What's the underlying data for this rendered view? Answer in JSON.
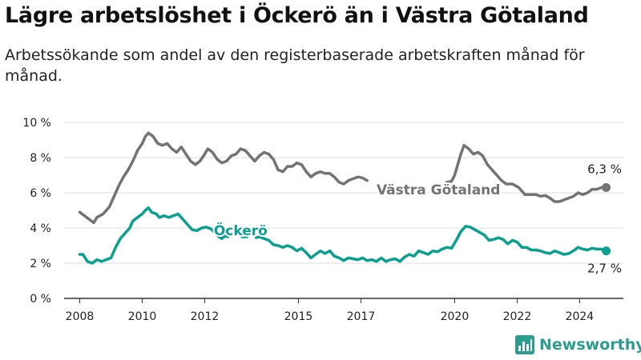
{
  "header": {
    "title": "Lägre arbetslöshet i Öckerö än i Västra Götaland",
    "subtitle": "Arbetssökande som andel av den registerbaserade arbetskraften månad för månad."
  },
  "brand": {
    "name": "Newsworthy",
    "icon": "bar-chart-logo-icon"
  },
  "colors": {
    "vg": "#737373",
    "ockero": "#0aa090",
    "grid": "#dddddd",
    "axis": "#333333",
    "text": "#222222"
  },
  "chart_data": {
    "type": "line",
    "ylim": [
      0,
      10
    ],
    "xlim": [
      2007.5,
      2025.4
    ],
    "ytick_values": [
      0,
      2,
      4,
      6,
      8,
      10
    ],
    "ytick_labels": [
      "0 %",
      "2 %",
      "4 %",
      "6 %",
      "8 %",
      "10 %"
    ],
    "xticks": [
      2008,
      2010,
      2012,
      2015,
      2017,
      2020,
      2022,
      2024
    ],
    "grid": true,
    "series": [
      {
        "name": "Västra Götaland",
        "key": "vg",
        "end_label": "6,3 %",
        "segments": [
          [
            [
              2008.0,
              4.9
            ],
            [
              2008.15,
              4.7
            ],
            [
              2008.3,
              4.5
            ],
            [
              2008.45,
              4.3
            ],
            [
              2008.55,
              4.6
            ],
            [
              2008.75,
              4.8
            ],
            [
              2008.95,
              5.2
            ],
            [
              2009.1,
              5.8
            ],
            [
              2009.25,
              6.4
            ],
            [
              2009.4,
              6.9
            ],
            [
              2009.55,
              7.3
            ],
            [
              2009.7,
              7.8
            ],
            [
              2009.85,
              8.4
            ],
            [
              2010.0,
              8.8
            ],
            [
              2010.1,
              9.2
            ],
            [
              2010.2,
              9.4
            ],
            [
              2010.35,
              9.2
            ],
            [
              2010.5,
              8.8
            ],
            [
              2010.65,
              8.7
            ],
            [
              2010.8,
              8.8
            ],
            [
              2010.95,
              8.5
            ],
            [
              2011.1,
              8.3
            ],
            [
              2011.25,
              8.6
            ],
            [
              2011.4,
              8.2
            ],
            [
              2011.55,
              7.8
            ],
            [
              2011.7,
              7.6
            ],
            [
              2011.85,
              7.8
            ],
            [
              2012.0,
              8.2
            ],
            [
              2012.1,
              8.5
            ],
            [
              2012.25,
              8.3
            ],
            [
              2012.4,
              7.9
            ],
            [
              2012.55,
              7.7
            ],
            [
              2012.7,
              7.8
            ],
            [
              2012.85,
              8.1
            ],
            [
              2013.0,
              8.2
            ],
            [
              2013.15,
              8.5
            ],
            [
              2013.3,
              8.4
            ],
            [
              2013.45,
              8.1
            ],
            [
              2013.6,
              7.8
            ],
            [
              2013.75,
              8.1
            ],
            [
              2013.9,
              8.3
            ],
            [
              2014.05,
              8.2
            ],
            [
              2014.2,
              7.9
            ],
            [
              2014.35,
              7.3
            ],
            [
              2014.5,
              7.2
            ],
            [
              2014.65,
              7.5
            ],
            [
              2014.8,
              7.5
            ],
            [
              2014.95,
              7.7
            ],
            [
              2015.1,
              7.6
            ],
            [
              2015.25,
              7.2
            ],
            [
              2015.4,
              6.9
            ],
            [
              2015.55,
              7.1
            ],
            [
              2015.7,
              7.2
            ],
            [
              2015.85,
              7.1
            ],
            [
              2016.0,
              7.1
            ],
            [
              2016.15,
              6.9
            ],
            [
              2016.3,
              6.6
            ],
            [
              2016.45,
              6.5
            ],
            [
              2016.6,
              6.7
            ],
            [
              2016.75,
              6.8
            ],
            [
              2016.9,
              6.9
            ],
            [
              2017.05,
              6.85
            ],
            [
              2017.2,
              6.7
            ]
          ],
          [
            [
              2019.75,
              6.6
            ],
            [
              2019.9,
              6.65
            ],
            [
              2020.0,
              7.0
            ],
            [
              2020.1,
              7.6
            ],
            [
              2020.2,
              8.2
            ],
            [
              2020.3,
              8.7
            ],
            [
              2020.45,
              8.5
            ],
            [
              2020.6,
              8.2
            ],
            [
              2020.75,
              8.3
            ],
            [
              2020.9,
              8.1
            ],
            [
              2021.05,
              7.6
            ],
            [
              2021.2,
              7.3
            ],
            [
              2021.35,
              7.0
            ],
            [
              2021.5,
              6.7
            ],
            [
              2021.65,
              6.5
            ],
            [
              2021.85,
              6.5
            ],
            [
              2022.05,
              6.3
            ],
            [
              2022.25,
              5.9
            ],
            [
              2022.45,
              5.9
            ],
            [
              2022.6,
              5.9
            ],
            [
              2022.75,
              5.8
            ],
            [
              2022.9,
              5.85
            ],
            [
              2023.05,
              5.7
            ],
            [
              2023.2,
              5.5
            ],
            [
              2023.35,
              5.5
            ],
            [
              2023.5,
              5.6
            ],
            [
              2023.65,
              5.7
            ],
            [
              2023.8,
              5.8
            ],
            [
              2023.95,
              6.0
            ],
            [
              2024.1,
              5.9
            ],
            [
              2024.25,
              6.0
            ],
            [
              2024.4,
              6.2
            ],
            [
              2024.55,
              6.2
            ],
            [
              2024.7,
              6.3
            ],
            [
              2024.85,
              6.3
            ]
          ]
        ]
      },
      {
        "name": "Öckerö",
        "key": "ockero",
        "end_label": "2,7 %",
        "segments": [
          [
            [
              2008.0,
              2.5
            ],
            [
              2008.1,
              2.5
            ],
            [
              2008.25,
              2.1
            ],
            [
              2008.4,
              2.0
            ],
            [
              2008.55,
              2.2
            ],
            [
              2008.7,
              2.1
            ],
            [
              2008.85,
              2.2
            ],
            [
              2009.0,
              2.3
            ],
            [
              2009.15,
              2.9
            ],
            [
              2009.3,
              3.4
            ],
            [
              2009.45,
              3.7
            ],
            [
              2009.6,
              4.0
            ],
            [
              2009.7,
              4.4
            ],
            [
              2009.85,
              4.6
            ],
            [
              2010.0,
              4.8
            ],
            [
              2010.1,
              5.0
            ],
            [
              2010.2,
              5.15
            ],
            [
              2010.3,
              4.9
            ],
            [
              2010.45,
              4.8
            ],
            [
              2010.55,
              4.6
            ],
            [
              2010.7,
              4.7
            ],
            [
              2010.85,
              4.6
            ],
            [
              2011.0,
              4.7
            ],
            [
              2011.15,
              4.8
            ],
            [
              2011.3,
              4.5
            ],
            [
              2011.45,
              4.2
            ],
            [
              2011.6,
              3.9
            ],
            [
              2011.75,
              3.85
            ],
            [
              2011.9,
              4.0
            ],
            [
              2012.05,
              4.05
            ],
            [
              2012.2,
              3.95
            ],
            [
              2012.35,
              3.7
            ],
            [
              2012.45,
              3.5
            ],
            [
              2012.55,
              3.4
            ],
            [
              2012.65,
              3.55
            ],
            [
              2012.75,
              3.5
            ]
          ],
          [
            [
              2013.2,
              3.5
            ],
            [
              2013.35,
              3.5
            ]
          ],
          [
            [
              2013.65,
              3.45
            ],
            [
              2013.75,
              3.5
            ],
            [
              2013.9,
              3.4
            ],
            [
              2014.05,
              3.3
            ],
            [
              2014.2,
              3.05
            ],
            [
              2014.35,
              3.0
            ],
            [
              2014.5,
              2.9
            ],
            [
              2014.65,
              3.0
            ],
            [
              2014.8,
              2.9
            ],
            [
              2014.95,
              2.7
            ],
            [
              2015.1,
              2.85
            ],
            [
              2015.25,
              2.6
            ],
            [
              2015.4,
              2.3
            ],
            [
              2015.55,
              2.5
            ],
            [
              2015.7,
              2.7
            ],
            [
              2015.85,
              2.55
            ],
            [
              2016.0,
              2.7
            ],
            [
              2016.15,
              2.4
            ],
            [
              2016.3,
              2.3
            ],
            [
              2016.45,
              2.15
            ],
            [
              2016.6,
              2.3
            ],
            [
              2016.75,
              2.25
            ],
            [
              2016.9,
              2.2
            ],
            [
              2017.05,
              2.3
            ],
            [
              2017.2,
              2.15
            ],
            [
              2017.35,
              2.2
            ],
            [
              2017.5,
              2.1
            ],
            [
              2017.65,
              2.3
            ],
            [
              2017.8,
              2.1
            ],
            [
              2017.95,
              2.2
            ],
            [
              2018.1,
              2.25
            ],
            [
              2018.25,
              2.1
            ],
            [
              2018.4,
              2.35
            ],
            [
              2018.55,
              2.5
            ],
            [
              2018.7,
              2.4
            ],
            [
              2018.85,
              2.7
            ],
            [
              2019.0,
              2.6
            ],
            [
              2019.15,
              2.5
            ],
            [
              2019.3,
              2.7
            ],
            [
              2019.45,
              2.65
            ],
            [
              2019.6,
              2.8
            ],
            [
              2019.75,
              2.9
            ],
            [
              2019.9,
              2.85
            ],
            [
              2020.05,
              3.3
            ],
            [
              2020.2,
              3.8
            ],
            [
              2020.35,
              4.1
            ],
            [
              2020.5,
              4.05
            ],
            [
              2020.65,
              3.9
            ],
            [
              2020.8,
              3.75
            ],
            [
              2020.95,
              3.6
            ],
            [
              2021.1,
              3.3
            ],
            [
              2021.25,
              3.35
            ],
            [
              2021.4,
              3.45
            ],
            [
              2021.55,
              3.35
            ],
            [
              2021.7,
              3.1
            ],
            [
              2021.85,
              3.3
            ],
            [
              2022.0,
              3.2
            ],
            [
              2022.15,
              2.9
            ],
            [
              2022.3,
              2.9
            ],
            [
              2022.45,
              2.75
            ],
            [
              2022.6,
              2.75
            ],
            [
              2022.75,
              2.7
            ],
            [
              2022.9,
              2.6
            ],
            [
              2023.05,
              2.55
            ],
            [
              2023.2,
              2.7
            ],
            [
              2023.35,
              2.6
            ],
            [
              2023.5,
              2.5
            ],
            [
              2023.65,
              2.55
            ],
            [
              2023.8,
              2.7
            ],
            [
              2023.95,
              2.9
            ],
            [
              2024.1,
              2.8
            ],
            [
              2024.25,
              2.75
            ],
            [
              2024.4,
              2.85
            ],
            [
              2024.55,
              2.8
            ],
            [
              2024.7,
              2.8
            ],
            [
              2024.85,
              2.7
            ]
          ]
        ]
      }
    ]
  }
}
